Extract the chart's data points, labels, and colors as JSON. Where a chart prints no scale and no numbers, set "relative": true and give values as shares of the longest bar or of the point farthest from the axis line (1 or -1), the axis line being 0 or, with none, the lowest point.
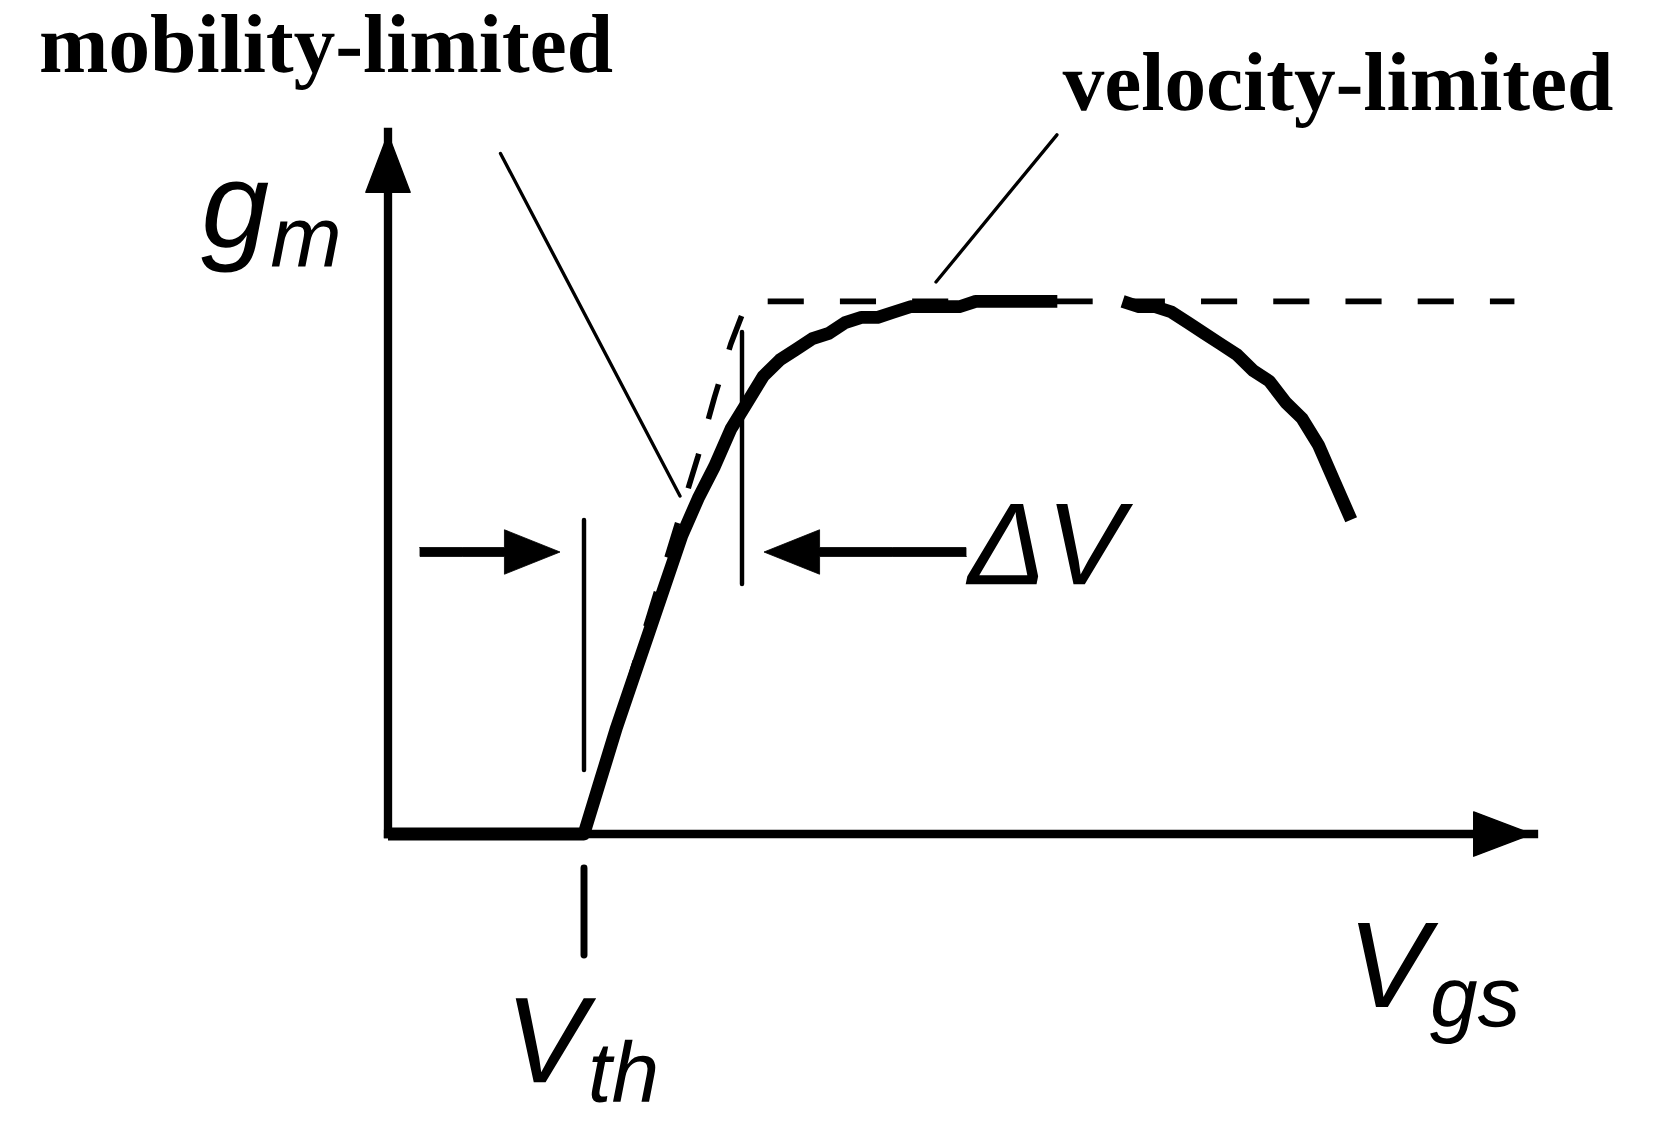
{
  "chart_data": {
    "type": "line",
    "relative": true,
    "xlabel": "V$_{gs}$",
    "ylabel": "g$_{m}$",
    "categories": [
      null,
      null,
      null,
      null,
      null,
      null,
      null,
      null,
      null,
      null,
      null,
      null,
      null,
      null,
      null,
      null,
      null,
      null,
      null,
      null,
      null,
      null,
      null,
      null,
      null,
      null,
      null,
      null,
      null,
      null,
      null,
      null,
      null,
      null,
      null,
      null,
      null,
      null,
      null,
      null,
      null,
      null,
      null,
      null,
      null,
      null,
      null,
      null,
      null,
      null,
      null,
      null,
      null,
      null,
      null,
      null,
      null,
      null,
      null,
      null,
      null,
      null,
      null,
      null,
      null,
      null,
      null,
      null,
      null,
      null
    ],
    "series": [
      {
        "color": "#000000",
        "line_style": "dashed",
        "values": [
          null,
          null,
          null,
          null,
          null,
          null,
          null,
          null,
          null,
          null,
          null,
          null,
          0,
          0.1,
          0.2,
          0.31,
          0.41,
          0.51,
          0.61,
          0.71,
          0.82,
          0.92,
          1,
          1,
          1,
          1,
          1,
          1,
          1,
          1,
          1,
          1,
          1,
          1,
          1,
          1,
          1,
          1,
          1,
          1,
          1,
          1,
          1,
          1,
          1,
          1,
          1,
          1,
          1,
          1,
          1,
          1,
          1,
          1,
          1,
          1,
          1,
          1,
          1,
          1,
          1,
          1,
          1,
          1,
          1,
          1,
          1,
          1,
          1,
          1
        ]
      },
      {
        "color": "#000000",
        "line_style": "solid",
        "values": [
          0,
          0,
          0,
          0,
          0,
          0,
          0,
          0,
          0,
          0,
          0,
          0,
          0,
          0.1,
          0.2,
          0.29,
          0.38,
          0.47,
          0.56,
          0.63,
          0.69,
          0.76,
          0.81,
          0.86,
          0.89,
          0.91,
          0.93,
          0.94,
          0.96,
          0.97,
          0.97,
          0.98,
          0.99,
          0.99,
          0.99,
          0.99,
          1,
          1,
          1,
          1,
          1,
          1,
          null,
          null,
          null,
          1,
          0.99,
          0.99,
          0.98,
          0.96,
          0.94,
          0.92,
          0.9,
          0.87,
          0.85,
          0.81,
          0.78,
          0.73,
          0.66,
          0.59,
          null,
          null,
          null,
          null,
          null,
          null,
          null,
          null,
          null,
          null
        ]
      }
    ],
    "annotations": [
      "mobility-limited",
      "velocity-limited",
      "ΔV",
      "V$_{th}$"
    ]
  }
}
